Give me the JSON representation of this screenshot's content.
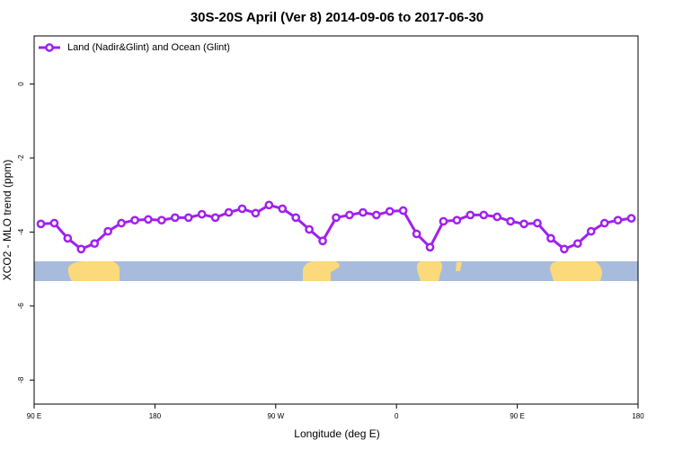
{
  "chart_data": {
    "type": "line",
    "title": "30S-20S April (Ver 8)   2014-09-06 to 2017-06-30",
    "x_label": "Longitude (deg E)",
    "y_label": "XCO2 - MLO trend (ppm)",
    "x": [
      95,
      105,
      115,
      125,
      135,
      145,
      155,
      165,
      175,
      185,
      195,
      205,
      215,
      225,
      235,
      245,
      255,
      265,
      275,
      285,
      295,
      305,
      315,
      325,
      335,
      345,
      355,
      365,
      375,
      385,
      395,
      405,
      415,
      425,
      435,
      445,
      455,
      465,
      475,
      485,
      495,
      505,
      515,
      525,
      535
    ],
    "series": [
      {
        "name": "Land (Nadir&Glint) and Ocean (Glint)",
        "color": "#a020f0",
        "values": [
          -3.78,
          -3.76,
          -4.17,
          -4.46,
          -4.31,
          -3.98,
          -3.76,
          -3.68,
          -3.66,
          -3.68,
          -3.61,
          -3.61,
          -3.52,
          -3.61,
          -3.47,
          -3.37,
          -3.49,
          -3.27,
          -3.37,
          -3.61,
          -3.93,
          -4.24,
          -3.61,
          -3.54,
          -3.47,
          -3.54,
          -3.44,
          -3.42,
          -4.05,
          -4.41,
          -3.71,
          -3.68,
          -3.54,
          -3.54,
          -3.59,
          -3.71,
          -3.78,
          -3.76,
          -4.17,
          -4.46,
          -4.31,
          -3.98,
          -3.76,
          -3.68,
          -3.63
        ]
      }
    ],
    "xlim": [
      90,
      540
    ],
    "xticks": [
      {
        "value": 90,
        "label": "90 E"
      },
      180,
      {
        "value": 270,
        "label": "90 W"
      },
      {
        "value": 360,
        "label": "0"
      },
      {
        "value": 450,
        "label": "90 E"
      },
      {
        "value": 540,
        "label": "180"
      }
    ],
    "ylim": [
      -8.65,
      1.3
    ],
    "yticks": [
      0,
      -2,
      -4,
      -6,
      -8
    ],
    "legend": "top-left"
  }
}
